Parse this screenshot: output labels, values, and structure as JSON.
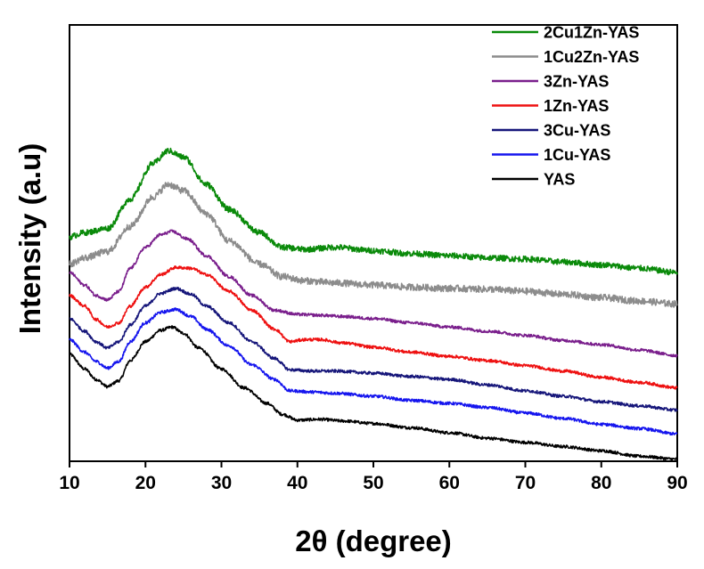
{
  "chart_data": {
    "type": "line",
    "title": "",
    "xlabel": "2θ (degree)",
    "ylabel": "Intensity (a.u)",
    "xlim": [
      10,
      90
    ],
    "ylim": [
      0,
      10.4
    ],
    "xticks": [
      10,
      20,
      30,
      40,
      50,
      60,
      70,
      80,
      90
    ],
    "xtick_labels": [
      "10",
      "20",
      "30",
      "40",
      "50",
      "60",
      "70",
      "80",
      "90"
    ],
    "yticks_visible": false,
    "legend_position": "top-right",
    "series": [
      {
        "name": "2Cu1Zn-YAS",
        "color": "#0a8a0a",
        "noise": 0.07,
        "points": [
          [
            10,
            5.35
          ],
          [
            12,
            5.45
          ],
          [
            15,
            5.55
          ],
          [
            18,
            6.25
          ],
          [
            21,
            7.1
          ],
          [
            23,
            7.4
          ],
          [
            25,
            7.25
          ],
          [
            28,
            6.6
          ],
          [
            31,
            6.0
          ],
          [
            35,
            5.45
          ],
          [
            38,
            5.1
          ],
          [
            41,
            5.05
          ],
          [
            45,
            5.1
          ],
          [
            50,
            5.02
          ],
          [
            55,
            4.95
          ],
          [
            60,
            4.9
          ],
          [
            65,
            4.85
          ],
          [
            70,
            4.82
          ],
          [
            75,
            4.75
          ],
          [
            80,
            4.68
          ],
          [
            85,
            4.6
          ],
          [
            90,
            4.5
          ]
        ]
      },
      {
        "name": "1Cu2Zn-YAS",
        "color": "#8c8c8c",
        "noise": 0.08,
        "points": [
          [
            10,
            4.7
          ],
          [
            12,
            4.85
          ],
          [
            15,
            5.0
          ],
          [
            18,
            5.6
          ],
          [
            21,
            6.3
          ],
          [
            23,
            6.6
          ],
          [
            25,
            6.45
          ],
          [
            28,
            5.9
          ],
          [
            31,
            5.25
          ],
          [
            35,
            4.7
          ],
          [
            38,
            4.4
          ],
          [
            41,
            4.3
          ],
          [
            45,
            4.25
          ],
          [
            50,
            4.2
          ],
          [
            55,
            4.15
          ],
          [
            60,
            4.12
          ],
          [
            65,
            4.1
          ],
          [
            70,
            4.05
          ],
          [
            75,
            3.98
          ],
          [
            80,
            3.9
          ],
          [
            85,
            3.82
          ],
          [
            90,
            3.75
          ]
        ]
      },
      {
        "name": "3Zn-YAS",
        "color": "#7a1f8c",
        "noise": 0.035,
        "points": [
          [
            10,
            4.5
          ],
          [
            12,
            4.2
          ],
          [
            13.5,
            3.95
          ],
          [
            15,
            3.85
          ],
          [
            16.5,
            4.05
          ],
          [
            18,
            4.6
          ],
          [
            20,
            5.1
          ],
          [
            22,
            5.4
          ],
          [
            23.5,
            5.48
          ],
          [
            25.5,
            5.3
          ],
          [
            28,
            4.9
          ],
          [
            31,
            4.4
          ],
          [
            34,
            3.95
          ],
          [
            37,
            3.6
          ],
          [
            40,
            3.5
          ],
          [
            43,
            3.48
          ],
          [
            46,
            3.45
          ],
          [
            50,
            3.4
          ],
          [
            55,
            3.3
          ],
          [
            60,
            3.2
          ],
          [
            65,
            3.1
          ],
          [
            70,
            3.0
          ],
          [
            75,
            2.88
          ],
          [
            80,
            2.78
          ],
          [
            85,
            2.65
          ],
          [
            90,
            2.52
          ]
        ]
      },
      {
        "name": "1Zn-YAS",
        "color": "#ee1111",
        "noise": 0.035,
        "points": [
          [
            10,
            3.95
          ],
          [
            12,
            3.7
          ],
          [
            13.5,
            3.38
          ],
          [
            15,
            3.2
          ],
          [
            16.5,
            3.3
          ],
          [
            18,
            3.7
          ],
          [
            20,
            4.15
          ],
          [
            22,
            4.45
          ],
          [
            24,
            4.62
          ],
          [
            26,
            4.6
          ],
          [
            28,
            4.45
          ],
          [
            31,
            4.05
          ],
          [
            34,
            3.6
          ],
          [
            37,
            3.15
          ],
          [
            39,
            2.85
          ],
          [
            41,
            2.9
          ],
          [
            43,
            2.9
          ],
          [
            46,
            2.82
          ],
          [
            50,
            2.72
          ],
          [
            55,
            2.6
          ],
          [
            60,
            2.5
          ],
          [
            65,
            2.4
          ],
          [
            70,
            2.28
          ],
          [
            75,
            2.15
          ],
          [
            80,
            2.0
          ],
          [
            85,
            1.88
          ],
          [
            90,
            1.75
          ]
        ]
      },
      {
        "name": "3Cu-YAS",
        "color": "#16167a",
        "noise": 0.035,
        "points": [
          [
            10,
            3.4
          ],
          [
            12,
            3.1
          ],
          [
            13.5,
            2.85
          ],
          [
            15,
            2.7
          ],
          [
            16.5,
            2.85
          ],
          [
            18,
            3.25
          ],
          [
            20,
            3.7
          ],
          [
            22,
            4.0
          ],
          [
            24,
            4.12
          ],
          [
            26,
            3.98
          ],
          [
            28,
            3.7
          ],
          [
            31,
            3.3
          ],
          [
            34,
            2.85
          ],
          [
            37,
            2.45
          ],
          [
            39,
            2.18
          ],
          [
            42,
            2.15
          ],
          [
            45,
            2.15
          ],
          [
            50,
            2.1
          ],
          [
            55,
            2.02
          ],
          [
            60,
            1.95
          ],
          [
            65,
            1.82
          ],
          [
            70,
            1.68
          ],
          [
            75,
            1.55
          ],
          [
            80,
            1.42
          ],
          [
            85,
            1.32
          ],
          [
            90,
            1.22
          ]
        ]
      },
      {
        "name": "1Cu-YAS",
        "color": "#1515ee",
        "noise": 0.035,
        "points": [
          [
            10,
            2.9
          ],
          [
            12,
            2.6
          ],
          [
            13.5,
            2.38
          ],
          [
            15,
            2.22
          ],
          [
            16.5,
            2.38
          ],
          [
            18,
            2.85
          ],
          [
            20,
            3.3
          ],
          [
            22,
            3.55
          ],
          [
            24,
            3.62
          ],
          [
            26,
            3.45
          ],
          [
            28,
            3.15
          ],
          [
            31,
            2.75
          ],
          [
            34,
            2.3
          ],
          [
            37,
            1.95
          ],
          [
            39,
            1.68
          ],
          [
            42,
            1.65
          ],
          [
            45,
            1.62
          ],
          [
            50,
            1.55
          ],
          [
            55,
            1.45
          ],
          [
            60,
            1.38
          ],
          [
            65,
            1.28
          ],
          [
            70,
            1.15
          ],
          [
            75,
            1.02
          ],
          [
            80,
            0.88
          ],
          [
            85,
            0.78
          ],
          [
            90,
            0.65
          ]
        ]
      },
      {
        "name": "YAS",
        "color": "#000000",
        "noise": 0.035,
        "points": [
          [
            10,
            2.55
          ],
          [
            12,
            2.2
          ],
          [
            13.5,
            1.95
          ],
          [
            15,
            1.78
          ],
          [
            16.5,
            1.92
          ],
          [
            18,
            2.4
          ],
          [
            20,
            2.85
          ],
          [
            22,
            3.12
          ],
          [
            23.5,
            3.2
          ],
          [
            25,
            3.05
          ],
          [
            27,
            2.7
          ],
          [
            30,
            2.2
          ],
          [
            33,
            1.75
          ],
          [
            36,
            1.38
          ],
          [
            38,
            1.12
          ],
          [
            40,
            0.98
          ],
          [
            43,
            1.0
          ],
          [
            46,
            0.96
          ],
          [
            50,
            0.9
          ],
          [
            55,
            0.8
          ],
          [
            60,
            0.68
          ],
          [
            65,
            0.55
          ],
          [
            70,
            0.45
          ],
          [
            75,
            0.35
          ],
          [
            80,
            0.25
          ],
          [
            85,
            0.12
          ],
          [
            90,
            0.05
          ]
        ]
      }
    ]
  }
}
